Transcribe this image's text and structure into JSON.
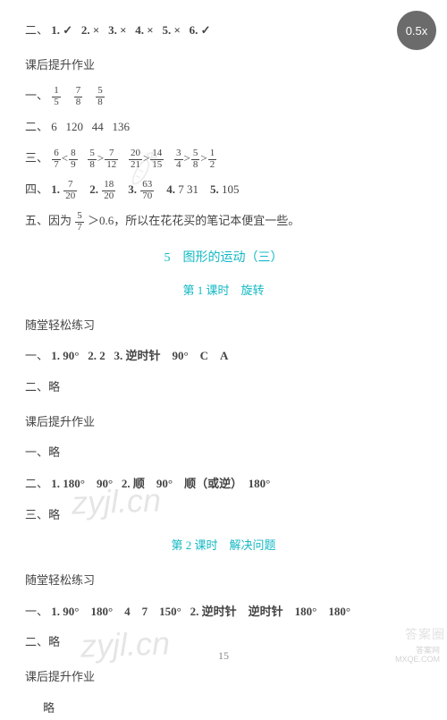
{
  "zoom": "0.5x",
  "line_er": {
    "prefix": "二、",
    "items": [
      "1. ✓",
      "2. ×",
      "3. ×",
      "4. ×",
      "5. ×",
      "6. ✓"
    ]
  },
  "after_class_1": "课后提升作业",
  "line_yi_frac": {
    "prefix": "一、",
    "fracs": [
      {
        "n": "1",
        "d": "5"
      },
      {
        "n": "7",
        "d": "8"
      },
      {
        "n": "5",
        "d": "8"
      }
    ]
  },
  "line_er_nums": {
    "prefix": "二、",
    "nums": [
      "6",
      "120",
      "44",
      "136"
    ]
  },
  "line_san_cmp": {
    "prefix": "三、",
    "chain": [
      {
        "t": "frac",
        "n": "6",
        "d": "7"
      },
      {
        "t": "op",
        "v": "<"
      },
      {
        "t": "frac",
        "n": "8",
        "d": "9"
      },
      {
        "t": "sp"
      },
      {
        "t": "frac",
        "n": "5",
        "d": "8"
      },
      {
        "t": "op",
        "v": ">"
      },
      {
        "t": "frac",
        "n": "7",
        "d": "12"
      },
      {
        "t": "sp"
      },
      {
        "t": "frac",
        "n": "20",
        "d": "21"
      },
      {
        "t": "op",
        "v": ">"
      },
      {
        "t": "frac",
        "n": "14",
        "d": "15"
      },
      {
        "t": "sp"
      },
      {
        "t": "frac",
        "n": "3",
        "d": "4"
      },
      {
        "t": "op",
        "v": ">"
      },
      {
        "t": "frac",
        "n": "5",
        "d": "8"
      },
      {
        "t": "op",
        "v": ">"
      },
      {
        "t": "frac",
        "n": "1",
        "d": "2"
      }
    ]
  },
  "line_si_frac": {
    "prefix": "四、",
    "items": [
      {
        "label": "1.",
        "frac": {
          "n": "7",
          "d": "20"
        }
      },
      {
        "label": "2.",
        "frac": {
          "n": "18",
          "d": "20"
        }
      },
      {
        "label": "3.",
        "frac": {
          "n": "63",
          "d": "70"
        }
      },
      {
        "label": "4.",
        "text": "7  31"
      },
      {
        "label": "5.",
        "text": "105"
      }
    ]
  },
  "line_wu": {
    "prefix": "五、因为",
    "frac": {
      "n": "5",
      "d": "7"
    },
    "suffix": "＞0.6，所以在花花买的笔记本便宜一些。"
  },
  "chapter": "5　图形的运动（三）",
  "lesson1": "第 1 课时　旋转",
  "in_class_1": "随堂轻松练习",
  "ic1_line1": {
    "prefix": "一、",
    "parts": [
      "1. 90°",
      "2. 2",
      "3. 逆时针　90°　C　A"
    ]
  },
  "ic1_line2": "二、略",
  "after_class_2": "课后提升作业",
  "ac2_line1": "一、略",
  "ac2_line2": {
    "prefix": "二、",
    "parts": [
      "1. 180°　90°",
      "2. 顺　90°　顺（或逆）　180°"
    ]
  },
  "ac2_line3": "三、略",
  "lesson2": "第 2 课时　解决问题",
  "in_class_2": "随堂轻松练习",
  "ic2_line1": {
    "prefix": "一、",
    "parts": [
      "1. 90°　180°　4　7　150°",
      "2. 逆时针　逆时针　180°　180°"
    ]
  },
  "ic2_line2": "二、略",
  "after_class_3": "课后提升作业",
  "ac3_line1": "略",
  "page_number": "15",
  "watermarks": {
    "w1": "zyjl.cn",
    "w2": "zyjl.cn",
    "mxqe_top": "答案网",
    "mxqe_bottom": "MXQE.COM",
    "corner": "答案圈"
  }
}
